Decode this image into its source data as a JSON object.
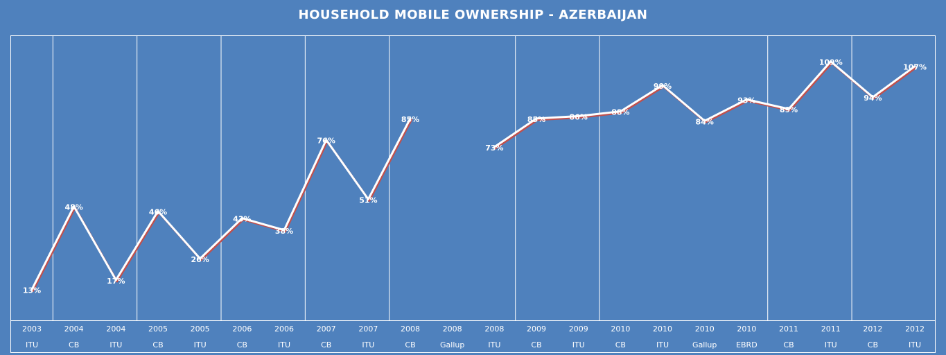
{
  "chart_data": {
    "type": "line",
    "title": "HOUSEHOLD MOBILE  OWNERSHIP - AZERBAIJAN",
    "xlabel": "",
    "ylabel": "",
    "ylim": [
      0,
      120
    ],
    "grid": false,
    "legend": "none",
    "line_color": "#ffffff",
    "shadow_color": "#c0504d",
    "categories": [
      {
        "year": "2003",
        "source": "ITU"
      },
      {
        "year": "2004",
        "source": "CB"
      },
      {
        "year": "2004",
        "source": "ITU"
      },
      {
        "year": "2005",
        "source": "CB"
      },
      {
        "year": "2005",
        "source": "ITU"
      },
      {
        "year": "2006",
        "source": "CB"
      },
      {
        "year": "2006",
        "source": "ITU"
      },
      {
        "year": "2007",
        "source": "CB"
      },
      {
        "year": "2007",
        "source": "ITU"
      },
      {
        "year": "2008",
        "source": "CB"
      },
      {
        "year": "2008",
        "source": "Gallup"
      },
      {
        "year": "2008",
        "source": "ITU"
      },
      {
        "year": "2009",
        "source": "CB"
      },
      {
        "year": "2009",
        "source": "ITU"
      },
      {
        "year": "2010",
        "source": "CB"
      },
      {
        "year": "2010",
        "source": "ITU"
      },
      {
        "year": "2010",
        "source": "Gallup"
      },
      {
        "year": "2010",
        "source": "EBRD"
      },
      {
        "year": "2011",
        "source": "CB"
      },
      {
        "year": "2011",
        "source": "ITU"
      },
      {
        "year": "2012",
        "source": "CB"
      },
      {
        "year": "2012",
        "source": "ITU"
      }
    ],
    "values": [
      13,
      48,
      17,
      46,
      26,
      43,
      38,
      76,
      51,
      85,
      null,
      73,
      85,
      86,
      88,
      99,
      84,
      93,
      89,
      109,
      94,
      107
    ],
    "data_labels": [
      "13%",
      "48%",
      "17%",
      "46%",
      "26%",
      "43%",
      "38%",
      "76%",
      "51%",
      "85%",
      "",
      "73%",
      "85%",
      "86%",
      "88%",
      "99%",
      "84%",
      "93%",
      "89%",
      "109%",
      "94%",
      "107%"
    ]
  }
}
